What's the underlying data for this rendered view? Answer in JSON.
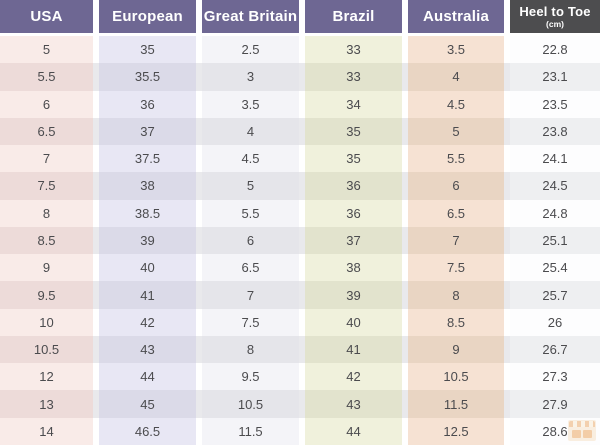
{
  "table": {
    "columns": [
      {
        "key": "usa",
        "label": "USA"
      },
      {
        "key": "european",
        "label": "European"
      },
      {
        "key": "great-britain",
        "label": "Great Britain"
      },
      {
        "key": "brazil",
        "label": "Brazil"
      },
      {
        "key": "australia",
        "label": "Australia"
      },
      {
        "key": "heel-to-toe",
        "label": "Heel to Toe",
        "sublabel": "(cm)"
      }
    ],
    "rows": [
      [
        "5",
        "35",
        "2.5",
        "33",
        "3.5",
        "22.8"
      ],
      [
        "5.5",
        "35.5",
        "3",
        "33",
        "4",
        "23.1"
      ],
      [
        "6",
        "36",
        "3.5",
        "34",
        "4.5",
        "23.5"
      ],
      [
        "6.5",
        "37",
        "4",
        "35",
        "5",
        "23.8"
      ],
      [
        "7",
        "37.5",
        "4.5",
        "35",
        "5.5",
        "24.1"
      ],
      [
        "7.5",
        "38",
        "5",
        "36",
        "6",
        "24.5"
      ],
      [
        "8",
        "38.5",
        "5.5",
        "36",
        "6.5",
        "24.8"
      ],
      [
        "8.5",
        "39",
        "6",
        "37",
        "7",
        "25.1"
      ],
      [
        "9",
        "40",
        "6.5",
        "38",
        "7.5",
        "25.4"
      ],
      [
        "9.5",
        "41",
        "7",
        "39",
        "8",
        "25.7"
      ],
      [
        "10",
        "42",
        "7.5",
        "40",
        "8.5",
        "26"
      ],
      [
        "10.5",
        "43",
        "8",
        "41",
        "9",
        "26.7"
      ],
      [
        "12",
        "44",
        "9.5",
        "42",
        "10.5",
        "27.3"
      ],
      [
        "13",
        "45",
        "10.5",
        "43",
        "11.5",
        "27.9"
      ],
      [
        "14",
        "46.5",
        "11.5",
        "44",
        "12.5",
        "28.6"
      ]
    ]
  },
  "colors": {
    "header_bg": "#6e6793",
    "header_dark_bg": "#4d4d4f",
    "column_odd": [
      "#f9ebe8",
      "#e8e7f4",
      "#f4f4f8",
      "#f0f1dc",
      "#f6e2d3",
      "#fdfdfe"
    ],
    "column_even": [
      "#eddbd9",
      "#dbdae8",
      "#e5e5ea",
      "#e2e3cd",
      "#e9d5c3",
      "#eeeff1"
    ],
    "gap_odd": "#ffffff",
    "gap_even": "#e9e9ec",
    "text": "#4b4b4e"
  },
  "watermark": {
    "icon": "shop-logo"
  }
}
